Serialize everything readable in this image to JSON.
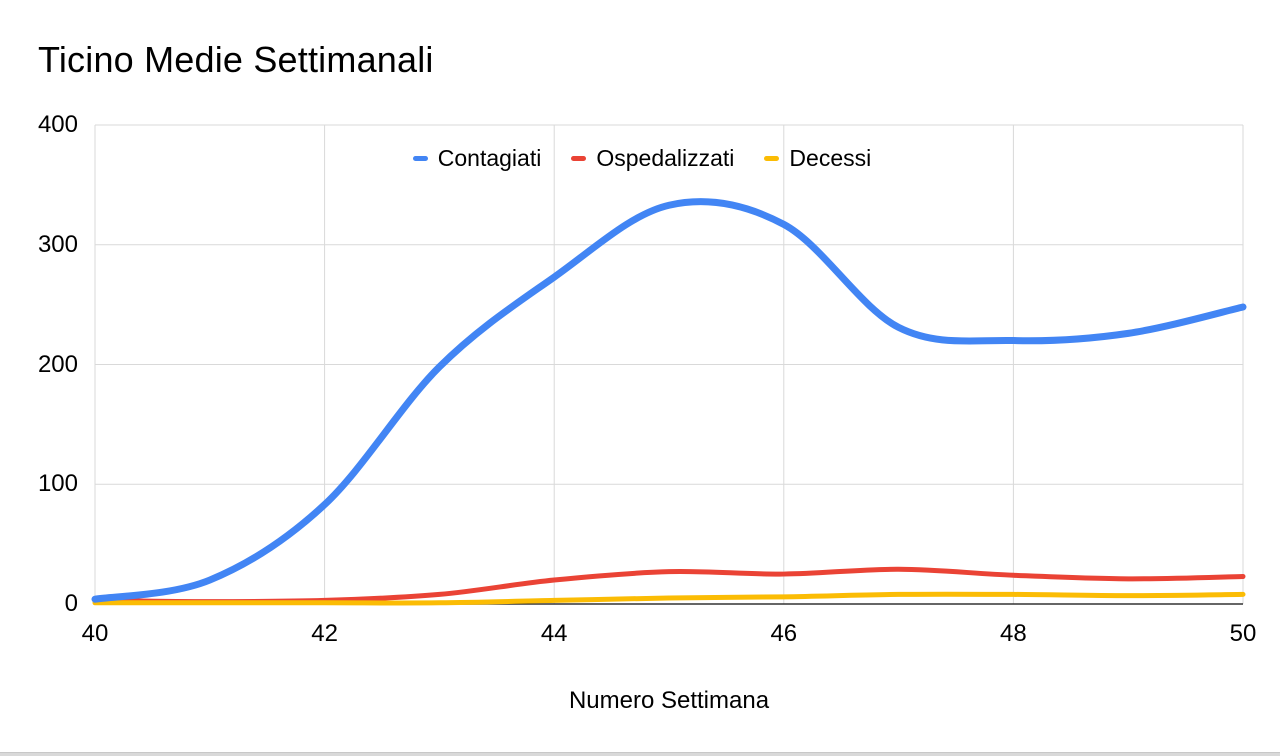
{
  "chart_data": {
    "type": "line",
    "title": "Ticino Medie Settimanali",
    "xlabel": "Numero Settimana",
    "ylabel": "",
    "x": [
      40,
      41,
      42,
      43,
      44,
      45,
      46,
      47,
      48,
      49,
      50
    ],
    "x_ticks": [
      40,
      42,
      44,
      46,
      48,
      50
    ],
    "y_ticks": [
      0,
      100,
      200,
      300,
      400
    ],
    "xlim": [
      40,
      50
    ],
    "ylim": [
      0,
      400
    ],
    "grid": true,
    "line_smoothing": true,
    "legend_position": "top-center",
    "series": [
      {
        "name": "Contagiati",
        "color": "#4285F4",
        "stroke_width": 7,
        "values": [
          4,
          20,
          83,
          198,
          273,
          333,
          317,
          231,
          220,
          226,
          248
        ]
      },
      {
        "name": "Ospedalizzati",
        "color": "#EA4335",
        "stroke_width": 5,
        "values": [
          3,
          2,
          3,
          8,
          20,
          27,
          25,
          29,
          24,
          21,
          23
        ]
      },
      {
        "name": "Decessi",
        "color": "#FBBC04",
        "stroke_width": 5,
        "values": [
          1,
          1,
          1,
          1,
          3,
          5,
          6,
          8,
          8,
          7,
          8
        ]
      }
    ]
  },
  "ui_colors": {
    "background": "#ffffff",
    "gridline": "#d9d9d9",
    "axis_line": "#333333",
    "text": "#000000"
  }
}
